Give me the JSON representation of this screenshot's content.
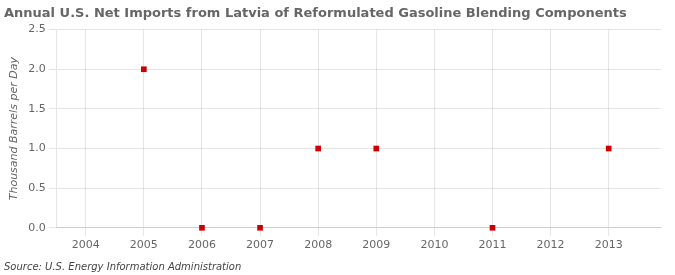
{
  "chart_data": {
    "type": "scatter",
    "title": "Annual U.S. Net Imports from Latvia of Reformulated Gasoline Blending Components",
    "ylabel": "Thousand Barrels per Day",
    "source": "Source: U.S. Energy Information Administration",
    "x": [
      2005,
      2006,
      2007,
      2008,
      2009,
      2011,
      2013
    ],
    "values": [
      2.0,
      0.0,
      0.0,
      1.0,
      1.0,
      0.0,
      1.0
    ],
    "color": "#cc0000",
    "marker": "square",
    "xlim": [
      2003.5,
      2013.9
    ],
    "xticks": [
      2004,
      2005,
      2006,
      2007,
      2008,
      2009,
      2010,
      2011,
      2012,
      2013
    ],
    "ylim": [
      0.0,
      2.5
    ],
    "yticks": [
      {
        "value": 0.0,
        "label": "0.0"
      },
      0.5,
      {
        "value": 1.0,
        "label": "1.0"
      },
      1.5,
      {
        "value": 2.0,
        "label": "2.0"
      },
      2.5
    ],
    "grid": true
  }
}
